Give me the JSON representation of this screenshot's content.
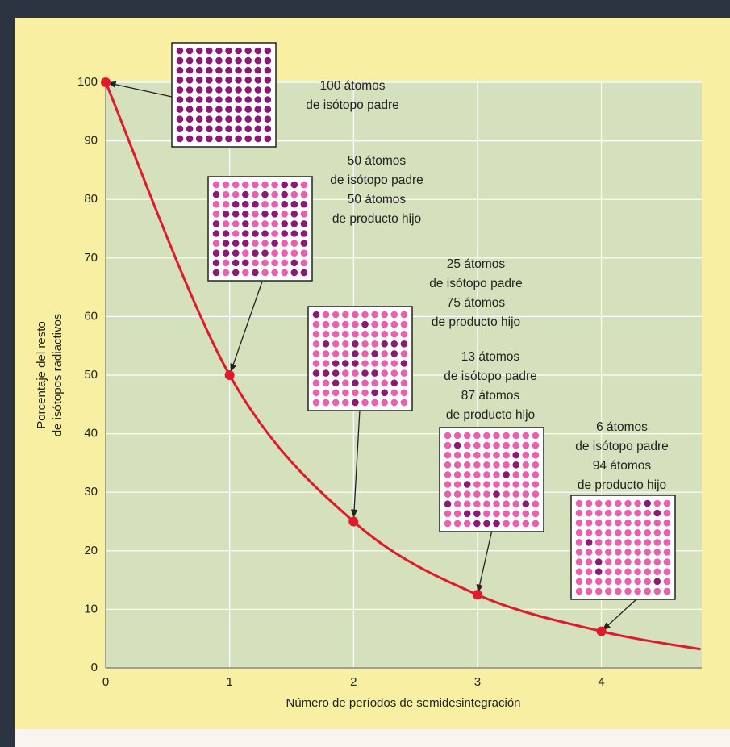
{
  "chart_data": {
    "type": "line",
    "x_label": "Número de períodos de semidesintegración",
    "y_label": [
      "Porcentaje del resto",
      "de isótopos radiactivos"
    ],
    "series": [
      {
        "color": "#e0192b",
        "x": [
          0,
          1,
          2,
          3,
          4,
          4.8
        ],
        "values": [
          100,
          50,
          25,
          12.5,
          6.25,
          3.2
        ]
      }
    ],
    "xlim": [
      0,
      4.81
    ],
    "xticks": [
      0,
      1,
      2,
      3,
      4
    ],
    "ylim": [
      0,
      100
    ],
    "yticks": [
      0,
      10,
      20,
      30,
      40,
      50,
      60,
      70,
      80,
      90,
      100
    ],
    "grid": true,
    "atom_colors": {
      "parent": "#8a1a78",
      "daughter": "#ec5fae"
    },
    "annotations": [
      {
        "lines": [
          "100 átomos",
          "de isótopo padre"
        ]
      },
      {
        "lines": [
          "50 átomos",
          "de isótopo padre",
          "50 átomos",
          "de producto hijo"
        ]
      },
      {
        "lines": [
          "25 átomos",
          "de isótopo padre",
          "75 átomos",
          "de producto hijo"
        ]
      },
      {
        "lines": [
          "13 átomos",
          "de isótopo padre",
          "87 átomos",
          "de producto hijo"
        ]
      },
      {
        "lines": [
          "6 átomos",
          "de isótopo padre",
          "94 átomos",
          "de producto hijo"
        ]
      }
    ]
  }
}
